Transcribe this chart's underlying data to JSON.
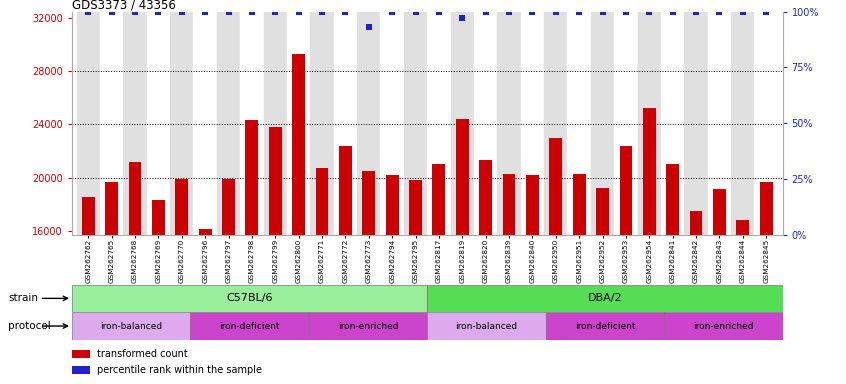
{
  "title": "GDS3373 / 43356",
  "samples": [
    "GSM262762",
    "GSM262765",
    "GSM262768",
    "GSM262769",
    "GSM262770",
    "GSM262796",
    "GSM262797",
    "GSM262798",
    "GSM262799",
    "GSM262800",
    "GSM262771",
    "GSM262772",
    "GSM262773",
    "GSM262794",
    "GSM262795",
    "GSM262817",
    "GSM262819",
    "GSM262820",
    "GSM262839",
    "GSM262840",
    "GSM262950",
    "GSM262951",
    "GSM262952",
    "GSM262953",
    "GSM262954",
    "GSM262841",
    "GSM262842",
    "GSM262843",
    "GSM262844",
    "GSM262845"
  ],
  "bar_values": [
    18500,
    19700,
    21200,
    18300,
    19900,
    16100,
    19900,
    24300,
    23800,
    29300,
    20700,
    22400,
    20500,
    20200,
    19800,
    21000,
    24400,
    21300,
    20300,
    20200,
    23000,
    20300,
    19200,
    22400,
    25200,
    21000,
    17500,
    19100,
    16800,
    19700
  ],
  "pct_values": [
    100,
    100,
    100,
    100,
    100,
    100,
    100,
    100,
    100,
    100,
    100,
    100,
    93,
    100,
    100,
    100,
    97,
    100,
    100,
    100,
    100,
    100,
    100,
    100,
    100,
    100,
    100,
    100,
    100,
    100
  ],
  "bar_color": "#cc0000",
  "dot_color": "#2222cc",
  "ylim_left": [
    15700,
    32500
  ],
  "yticks_left": [
    16000,
    20000,
    24000,
    28000,
    32000
  ],
  "yticks_right": [
    0,
    25,
    50,
    75,
    100
  ],
  "bg_color": "#ffffff",
  "col_bg_even": "#e0e0e0",
  "col_bg_odd": "#ffffff",
  "strain_c57_color": "#99ee99",
  "strain_dba_color": "#55dd55",
  "prot_balanced_color": "#ddaaee",
  "prot_deficient_color": "#cc44cc",
  "prot_enriched_color": "#cc44cc",
  "protocol_data": [
    [
      "iron-balanced",
      0,
      5,
      "#ddaaee"
    ],
    [
      "iron-deficient",
      5,
      10,
      "#cc44cc"
    ],
    [
      "iron-enriched",
      10,
      15,
      "#cc44cc"
    ],
    [
      "iron-balanced",
      15,
      20,
      "#ddaaee"
    ],
    [
      "iron-deficient",
      20,
      25,
      "#cc44cc"
    ],
    [
      "iron-enriched",
      25,
      30,
      "#cc44cc"
    ]
  ]
}
